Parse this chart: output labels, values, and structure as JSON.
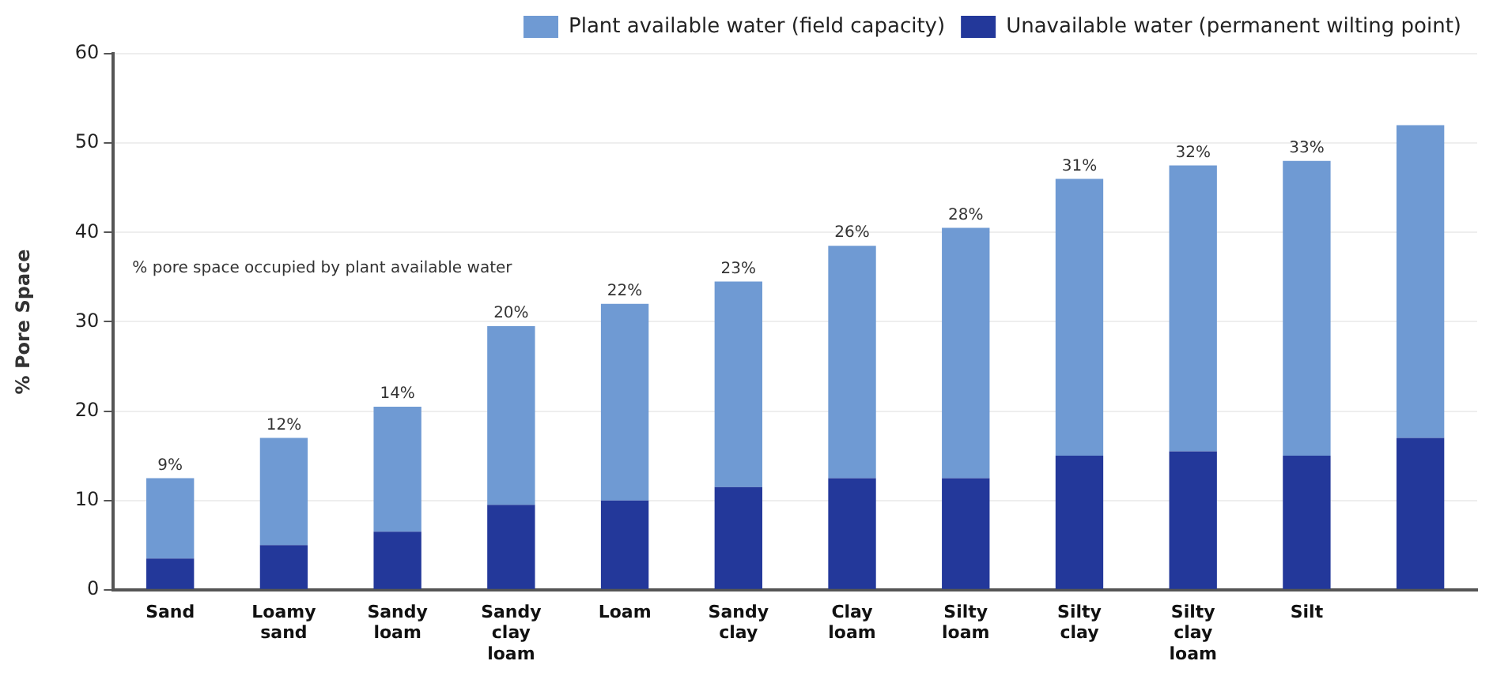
{
  "chart_data": {
    "type": "bar",
    "stacked": true,
    "ylabel": "% Pore Space",
    "categories": [
      "Sand",
      "Loamy sand",
      "Sandy loam",
      "Sandy clay loam",
      "Loam",
      "Sandy clay",
      "Clay loam",
      "Silty loam",
      "Silty clay",
      "Silty clay loam",
      "Silt",
      null
    ],
    "series": [
      {
        "name": "Unavailable water (permanent wilting point)",
        "color": "#23389a",
        "values": [
          3.5,
          5,
          6.5,
          9.5,
          10,
          11.5,
          12.5,
          12.5,
          15,
          15.5,
          15,
          17
        ]
      },
      {
        "name": "Plant available water (field capacity)",
        "color": "#6f9ad3",
        "values": [
          9,
          12,
          14,
          20,
          22,
          23,
          26,
          28,
          31,
          32,
          33,
          35
        ],
        "value_labels": [
          "9%",
          "12%",
          "14%",
          "20%",
          "22%",
          "23%",
          "26%",
          "28%",
          "31%",
          "32%",
          "33%",
          null
        ]
      }
    ],
    "ylim": [
      0,
      60
    ],
    "yticks": [
      0,
      10,
      20,
      30,
      40,
      50,
      60
    ],
    "grid": "y",
    "legend": "top right",
    "annotations": [
      "% pore space occupied by plant available water"
    ]
  }
}
